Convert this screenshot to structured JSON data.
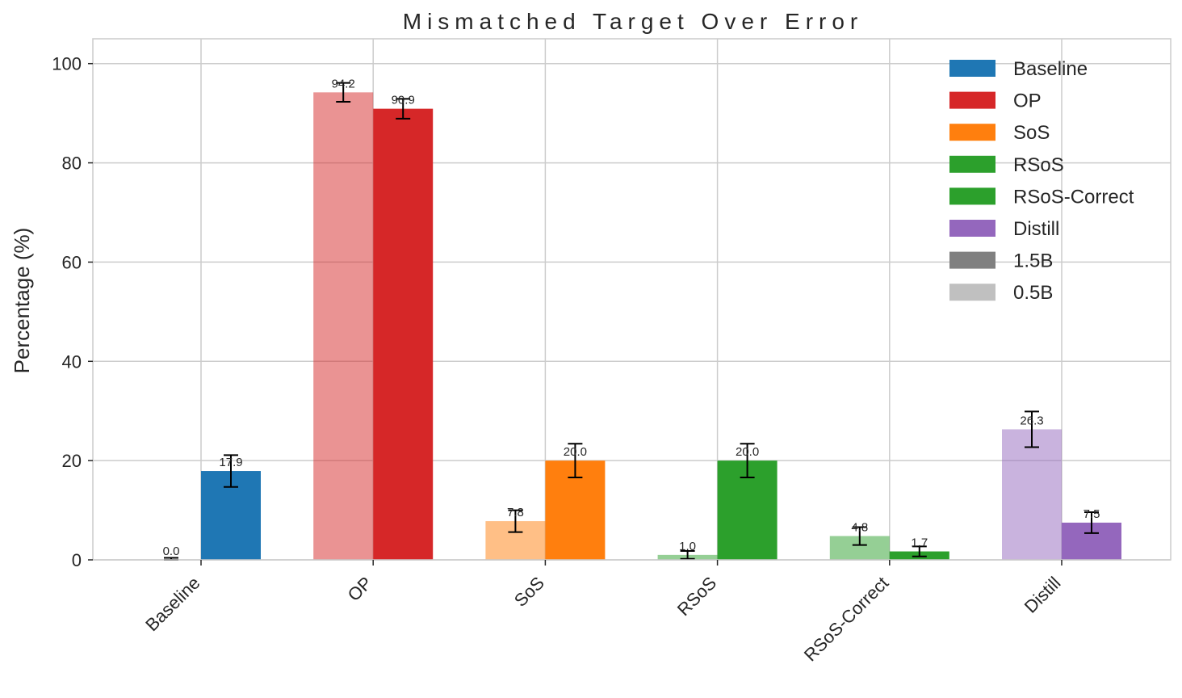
{
  "chart_data": {
    "type": "bar",
    "title": "Mismatched Target Over Error",
    "xlabel": "",
    "ylabel": "Percentage (%)",
    "ylim": [
      0,
      105
    ],
    "yticks": [
      0,
      20,
      40,
      60,
      80,
      100
    ],
    "grid": true,
    "legend_position": "top-right",
    "categories": [
      "Baseline",
      "OP",
      "SoS",
      "RSoS",
      "RSoS-Correct",
      "Distill"
    ],
    "category_colors": [
      "#1f77b4",
      "#d62728",
      "#ff7f0e",
      "#2ca02c",
      "#2ca02c",
      "#9467bd"
    ],
    "series": [
      {
        "name": "0.5B",
        "values": [
          0.0,
          94.2,
          7.8,
          1.0,
          4.8,
          26.3
        ],
        "errors": [
          0.4,
          1.9,
          2.2,
          0.8,
          1.8,
          3.6
        ],
        "alpha": 0.5
      },
      {
        "name": "1.5B",
        "values": [
          17.9,
          90.9,
          20.0,
          20.0,
          1.7,
          7.5
        ],
        "errors": [
          3.2,
          2.0,
          3.4,
          3.4,
          1.0,
          2.1
        ],
        "alpha": 1.0
      }
    ],
    "data_labels": [
      [
        "0.0",
        "94.2",
        "7.8",
        "1.0",
        "4.8",
        "26.3"
      ],
      [
        "17.9",
        "90.9",
        "20.0",
        "20.0",
        "1.7",
        "7.5"
      ]
    ],
    "legend": [
      {
        "label": "Baseline",
        "color": "#1f77b4"
      },
      {
        "label": "OP",
        "color": "#d62728"
      },
      {
        "label": "SoS",
        "color": "#ff7f0e"
      },
      {
        "label": "RSoS",
        "color": "#2ca02c"
      },
      {
        "label": "RSoS-Correct",
        "color": "#2ca02c"
      },
      {
        "label": "Distill",
        "color": "#9467bd"
      },
      {
        "label": "1.5B",
        "color": "#808080"
      },
      {
        "label": "0.5B",
        "color": "#c0c0c0"
      }
    ]
  }
}
